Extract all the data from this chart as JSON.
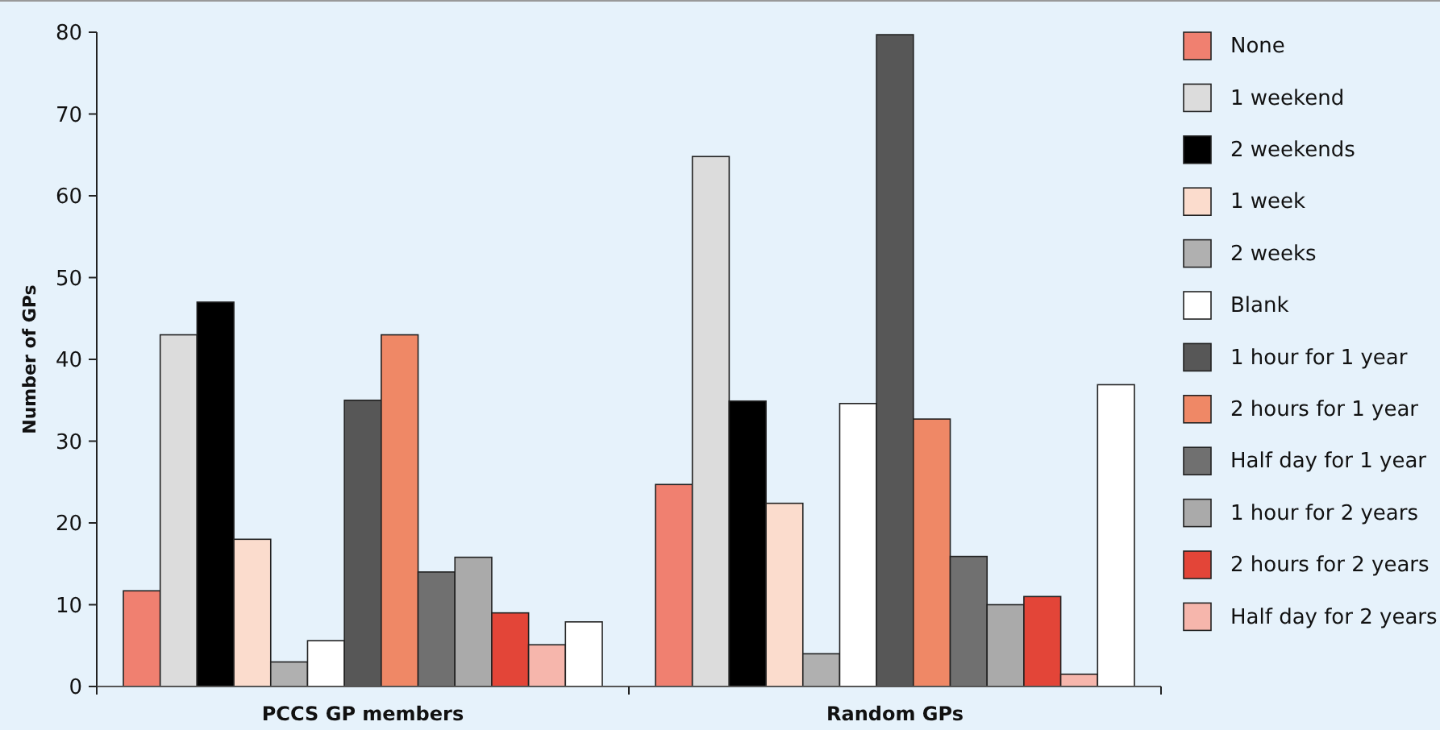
{
  "chart_data": {
    "type": "bar",
    "ylabel": "Number of GPs",
    "categories": [
      "PCCS GP members",
      "Random GPs"
    ],
    "ylim": [
      0,
      80
    ],
    "yticks": [
      0,
      10,
      20,
      30,
      40,
      50,
      60,
      70,
      80
    ],
    "legend": "right",
    "grid": false,
    "series": [
      {
        "name": "None",
        "color": "#f08070",
        "values": [
          11.7,
          24.7
        ]
      },
      {
        "name": "1 weekend",
        "color": "#dcdcdc",
        "values": [
          43,
          64.8
        ]
      },
      {
        "name": "2 weekends",
        "color": "#000000",
        "values": [
          47,
          34.9
        ]
      },
      {
        "name": "1 week",
        "color": "#fbdccd",
        "values": [
          18,
          22.4
        ]
      },
      {
        "name": "2 weeks",
        "color": "#b0b0b0",
        "values": [
          3,
          4
        ]
      },
      {
        "name": "Blank",
        "color": "#ffffff",
        "values": [
          5.6,
          34.6
        ]
      },
      {
        "name": "1 hour for 1 year",
        "color": "#575757",
        "values": [
          35,
          79.7
        ]
      },
      {
        "name": "2 hours for 1 year",
        "color": "#ef8866",
        "values": [
          43,
          32.7
        ]
      },
      {
        "name": "Half day for 1 year",
        "color": "#707070",
        "values": [
          14,
          15.9
        ]
      },
      {
        "name": "1 hour for 2 years",
        "color": "#aaaaaa",
        "values": [
          15.8,
          10
        ]
      },
      {
        "name": "2 hours for 2 years",
        "color": "#e34538",
        "values": [
          9,
          11
        ]
      },
      {
        "name": "Half day for 2 years",
        "color": "#f6b6ac",
        "values": [
          5.1,
          1.5
        ]
      },
      {
        "color": "#ffffff",
        "values": [
          7.9,
          36.9
        ]
      }
    ]
  }
}
